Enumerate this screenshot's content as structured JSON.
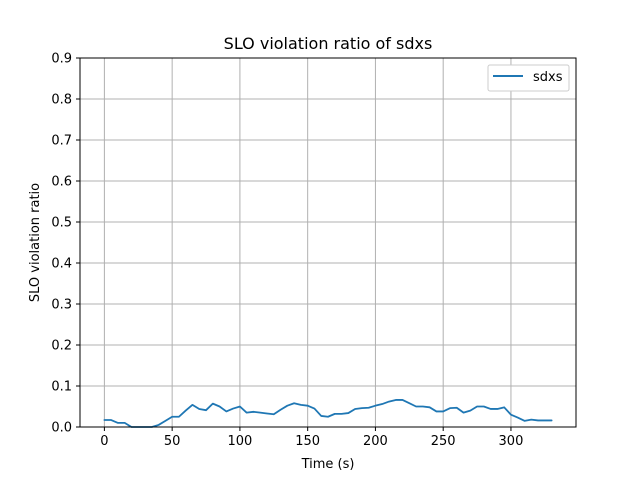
{
  "chart_data": {
    "type": "line",
    "title": "SLO violation ratio of sdxs",
    "xlabel": "Time (s)",
    "ylabel": "SLO violation ratio",
    "xlim": [
      -18,
      348
    ],
    "ylim": [
      0,
      0.9
    ],
    "xticks": [
      0,
      50,
      100,
      150,
      200,
      250,
      300
    ],
    "yticks": [
      0.0,
      0.1,
      0.2,
      0.3,
      0.4,
      0.5,
      0.6,
      0.7,
      0.8,
      0.9
    ],
    "grid": true,
    "legend_position": "top-right",
    "line_color": "#1f77b4",
    "series": [
      {
        "name": "sdxs",
        "x": [
          0,
          5,
          10,
          15,
          20,
          25,
          30,
          35,
          40,
          45,
          50,
          55,
          60,
          65,
          70,
          75,
          80,
          85,
          90,
          95,
          100,
          105,
          110,
          115,
          120,
          125,
          130,
          135,
          140,
          145,
          150,
          155,
          160,
          165,
          170,
          175,
          180,
          185,
          190,
          195,
          200,
          205,
          210,
          215,
          220,
          225,
          230,
          235,
          240,
          245,
          250,
          255,
          260,
          265,
          270,
          275,
          280,
          285,
          290,
          295,
          300,
          305,
          310,
          315,
          320,
          325,
          330
        ],
        "y": [
          0.017,
          0.017,
          0.01,
          0.01,
          0.0,
          0.0,
          0.0,
          0.0,
          0.005,
          0.015,
          0.025,
          0.025,
          0.04,
          0.054,
          0.044,
          0.041,
          0.057,
          0.05,
          0.038,
          0.045,
          0.05,
          0.035,
          0.037,
          0.035,
          0.033,
          0.031,
          0.042,
          0.052,
          0.058,
          0.054,
          0.052,
          0.045,
          0.027,
          0.025,
          0.032,
          0.032,
          0.034,
          0.044,
          0.046,
          0.047,
          0.052,
          0.056,
          0.062,
          0.066,
          0.066,
          0.058,
          0.05,
          0.05,
          0.048,
          0.038,
          0.038,
          0.046,
          0.047,
          0.035,
          0.04,
          0.05,
          0.05,
          0.044,
          0.044,
          0.048,
          0.03,
          0.023,
          0.015,
          0.018,
          0.016,
          0.016,
          0.016
        ]
      }
    ]
  }
}
